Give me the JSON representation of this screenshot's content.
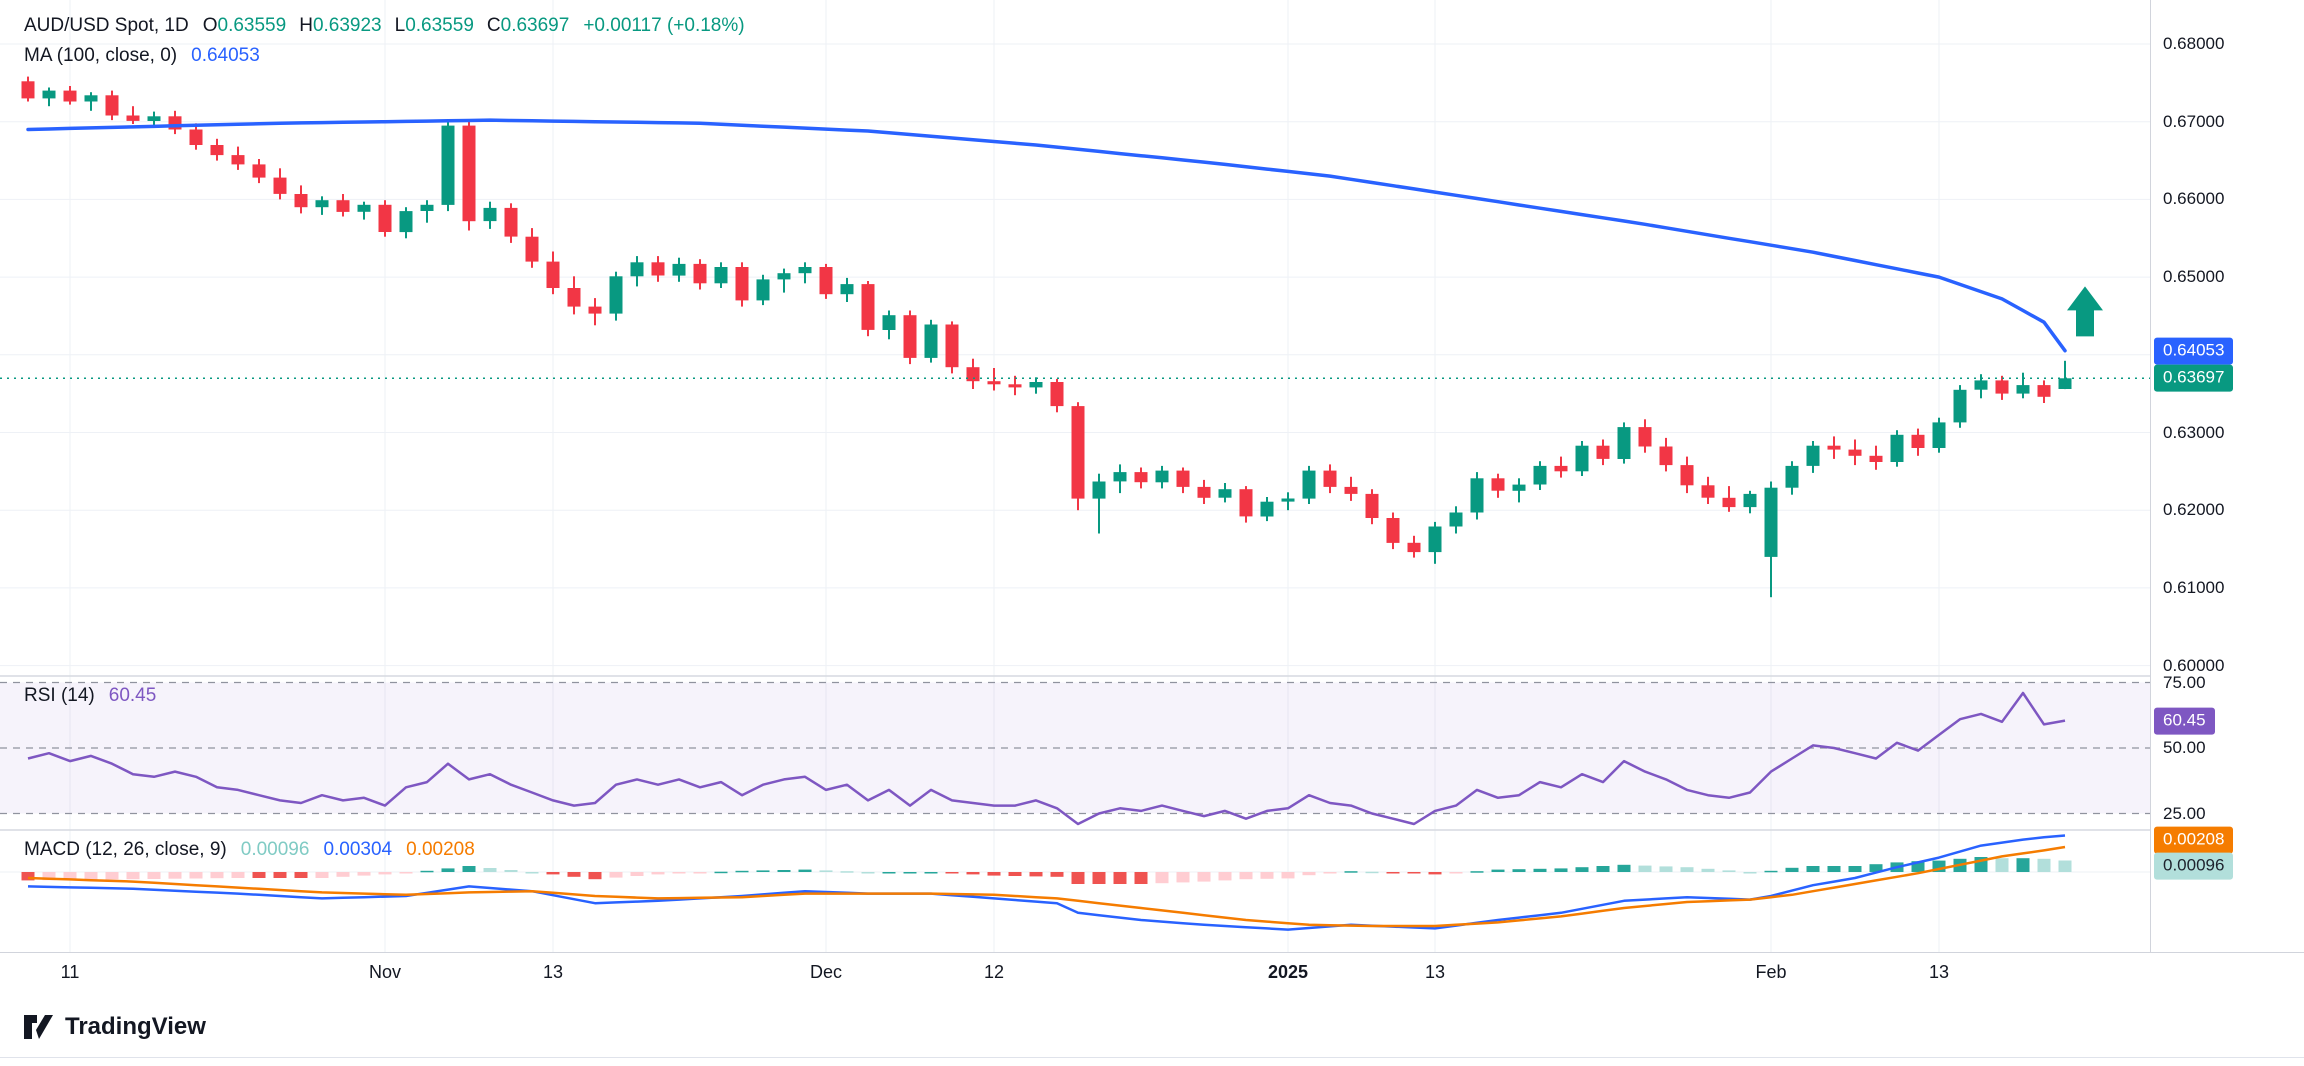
{
  "header": {
    "symbol": "AUD/USD Spot, 1D",
    "ohlc": [
      {
        "k": "O",
        "v": "0.63559"
      },
      {
        "k": "H",
        "v": "0.63923"
      },
      {
        "k": "L",
        "v": "0.63559"
      },
      {
        "k": "C",
        "v": "0.63697"
      }
    ],
    "change": "+0.00117 (+0.18%)",
    "ma_label": "MA (100, close, 0)",
    "ma_value": "0.64053"
  },
  "panes": {
    "rsi_label": "RSI (14)",
    "rsi_value": "60.45",
    "macd_label": "MACD (12, 26, close, 9)",
    "macd_hist": "0.00096",
    "macd_macd": "0.00304",
    "macd_signal": "0.00208"
  },
  "footer": {
    "logo_text": "TradingView"
  },
  "chart_data": {
    "type": "candlestick",
    "symbol": "AUD/USD Spot",
    "interval": "1D",
    "last_bar": {
      "open": 0.63559,
      "high": 0.63923,
      "low": 0.63559,
      "close": 0.63697,
      "change": "+0.00117 (+0.18%)"
    },
    "price_axis": {
      "min": 0.6,
      "max": 0.68,
      "labels": [
        [
          "0.68000",
          0.68
        ],
        [
          "0.67000",
          0.67
        ],
        [
          "0.66000",
          0.66
        ],
        [
          "0.65000",
          0.65
        ],
        [
          "0.63000",
          0.63
        ],
        [
          "0.62000",
          0.62
        ],
        [
          "0.61000",
          0.61
        ],
        [
          "0.60000",
          0.6
        ]
      ],
      "gridlines": [
        0.68,
        0.67,
        0.66,
        0.65,
        0.64,
        0.63,
        0.62,
        0.61,
        0.6
      ],
      "badges": [
        {
          "text": "0.64053",
          "price": 0.64053,
          "bg": "#2962ff",
          "fg": "#ffffff"
        },
        {
          "text": "0.63697",
          "price": 0.63697,
          "bg": "#089981",
          "fg": "#ffffff"
        }
      ]
    },
    "close_line": 0.63697,
    "arrow": {
      "price": 0.6452
    },
    "candles": [
      [
        0.6752,
        0.6758,
        0.6726,
        0.673
      ],
      [
        0.673,
        0.6744,
        0.672,
        0.674
      ],
      [
        0.674,
        0.6746,
        0.6722,
        0.6726
      ],
      [
        0.6726,
        0.6738,
        0.6714,
        0.6734
      ],
      [
        0.6734,
        0.674,
        0.6702,
        0.6708
      ],
      [
        0.6708,
        0.672,
        0.6697,
        0.6701
      ],
      [
        0.6701,
        0.6713,
        0.6692,
        0.6707
      ],
      [
        0.6707,
        0.6714,
        0.6684,
        0.669
      ],
      [
        0.669,
        0.6698,
        0.6664,
        0.667
      ],
      [
        0.667,
        0.6678,
        0.665,
        0.6657
      ],
      [
        0.6657,
        0.6668,
        0.6638,
        0.6645
      ],
      [
        0.6645,
        0.6652,
        0.6621,
        0.6628
      ],
      [
        0.6628,
        0.664,
        0.66,
        0.6607
      ],
      [
        0.6607,
        0.6618,
        0.6582,
        0.659
      ],
      [
        0.659,
        0.6604,
        0.658,
        0.6599
      ],
      [
        0.6599,
        0.6607,
        0.6578,
        0.6584
      ],
      [
        0.6584,
        0.6597,
        0.6574,
        0.6593
      ],
      [
        0.6593,
        0.6599,
        0.6552,
        0.6558
      ],
      [
        0.6558,
        0.659,
        0.655,
        0.6585
      ],
      [
        0.6585,
        0.6599,
        0.657,
        0.6593
      ],
      [
        0.6593,
        0.6702,
        0.6585,
        0.6695
      ],
      [
        0.6695,
        0.6701,
        0.656,
        0.6572
      ],
      [
        0.6572,
        0.6597,
        0.6562,
        0.6589
      ],
      [
        0.6589,
        0.6595,
        0.6544,
        0.6552
      ],
      [
        0.6552,
        0.6563,
        0.6512,
        0.652
      ],
      [
        0.652,
        0.6533,
        0.6478,
        0.6486
      ],
      [
        0.6486,
        0.6501,
        0.6452,
        0.6462
      ],
      [
        0.6462,
        0.6473,
        0.6438,
        0.6453
      ],
      [
        0.6453,
        0.6507,
        0.6444,
        0.6501
      ],
      [
        0.6501,
        0.6527,
        0.6488,
        0.6519
      ],
      [
        0.6519,
        0.6527,
        0.6494,
        0.6502
      ],
      [
        0.6502,
        0.6525,
        0.6494,
        0.6517
      ],
      [
        0.6517,
        0.6523,
        0.6484,
        0.6492
      ],
      [
        0.6492,
        0.6519,
        0.6486,
        0.6513
      ],
      [
        0.6513,
        0.6519,
        0.6462,
        0.647
      ],
      [
        0.647,
        0.6503,
        0.6464,
        0.6497
      ],
      [
        0.6497,
        0.6511,
        0.648,
        0.6505
      ],
      [
        0.6505,
        0.6519,
        0.6492,
        0.6513
      ],
      [
        0.6513,
        0.6517,
        0.6472,
        0.6478
      ],
      [
        0.6478,
        0.6499,
        0.6468,
        0.6491
      ],
      [
        0.6491,
        0.6495,
        0.6424,
        0.6432
      ],
      [
        0.6432,
        0.6457,
        0.642,
        0.6451
      ],
      [
        0.6451,
        0.6457,
        0.6388,
        0.6396
      ],
      [
        0.6396,
        0.6445,
        0.639,
        0.6439
      ],
      [
        0.6439,
        0.6443,
        0.6376,
        0.6384
      ],
      [
        0.6384,
        0.6395,
        0.6356,
        0.6366
      ],
      [
        0.6366,
        0.6383,
        0.6354,
        0.6362
      ],
      [
        0.6362,
        0.6373,
        0.6348,
        0.6358
      ],
      [
        0.6358,
        0.6371,
        0.635,
        0.6365
      ],
      [
        0.6365,
        0.6369,
        0.6326,
        0.6334
      ],
      [
        0.6334,
        0.6339,
        0.62,
        0.6215
      ],
      [
        0.6215,
        0.6247,
        0.617,
        0.6237
      ],
      [
        0.6237,
        0.6259,
        0.6222,
        0.6249
      ],
      [
        0.6249,
        0.6255,
        0.6228,
        0.6236
      ],
      [
        0.6236,
        0.6257,
        0.6228,
        0.6251
      ],
      [
        0.6251,
        0.6255,
        0.6222,
        0.623
      ],
      [
        0.623,
        0.6239,
        0.6208,
        0.6216
      ],
      [
        0.6216,
        0.6235,
        0.621,
        0.6227
      ],
      [
        0.6227,
        0.6231,
        0.6184,
        0.6192
      ],
      [
        0.6192,
        0.6217,
        0.6186,
        0.6211
      ],
      [
        0.6211,
        0.6223,
        0.62,
        0.6215
      ],
      [
        0.6215,
        0.6257,
        0.6208,
        0.6251
      ],
      [
        0.6251,
        0.6259,
        0.6222,
        0.623
      ],
      [
        0.623,
        0.6243,
        0.6212,
        0.6221
      ],
      [
        0.6221,
        0.6227,
        0.6182,
        0.619
      ],
      [
        0.619,
        0.6197,
        0.615,
        0.6158
      ],
      [
        0.6158,
        0.6167,
        0.6139,
        0.6146
      ],
      [
        0.6146,
        0.6185,
        0.6131,
        0.6179
      ],
      [
        0.6179,
        0.6205,
        0.617,
        0.6197
      ],
      [
        0.6197,
        0.6249,
        0.6188,
        0.6241
      ],
      [
        0.6241,
        0.6247,
        0.6216,
        0.6225
      ],
      [
        0.6225,
        0.6241,
        0.621,
        0.6233
      ],
      [
        0.6233,
        0.6263,
        0.6226,
        0.6257
      ],
      [
        0.6257,
        0.6269,
        0.6242,
        0.625
      ],
      [
        0.625,
        0.6289,
        0.6244,
        0.6283
      ],
      [
        0.6283,
        0.6291,
        0.6258,
        0.6266
      ],
      [
        0.6266,
        0.6313,
        0.626,
        0.6307
      ],
      [
        0.6307,
        0.6317,
        0.6274,
        0.6282
      ],
      [
        0.6282,
        0.6293,
        0.625,
        0.6258
      ],
      [
        0.6258,
        0.6269,
        0.6222,
        0.6232
      ],
      [
        0.6232,
        0.6243,
        0.6208,
        0.6216
      ],
      [
        0.6216,
        0.6231,
        0.6198,
        0.6204
      ],
      [
        0.6204,
        0.6225,
        0.6196,
        0.6221
      ],
      [
        0.614,
        0.6237,
        0.6088,
        0.6229
      ],
      [
        0.6229,
        0.6263,
        0.622,
        0.6257
      ],
      [
        0.6257,
        0.6289,
        0.6248,
        0.6283
      ],
      [
        0.6283,
        0.6295,
        0.6266,
        0.6278
      ],
      [
        0.6278,
        0.6291,
        0.6258,
        0.627
      ],
      [
        0.627,
        0.6283,
        0.6252,
        0.6262
      ],
      [
        0.6262,
        0.6303,
        0.6256,
        0.6297
      ],
      [
        0.6297,
        0.6305,
        0.627,
        0.628
      ],
      [
        0.628,
        0.6319,
        0.6274,
        0.6313
      ],
      [
        0.6313,
        0.6361,
        0.6306,
        0.6355
      ],
      [
        0.6355,
        0.6375,
        0.6344,
        0.6367
      ],
      [
        0.6367,
        0.6373,
        0.6342,
        0.635
      ],
      [
        0.635,
        0.6377,
        0.6344,
        0.6361
      ],
      [
        0.6361,
        0.6367,
        0.6338,
        0.6346
      ],
      [
        0.63559,
        0.63923,
        0.63559,
        0.63697
      ]
    ],
    "ma100": {
      "value": 0.64053,
      "anchors": [
        [
          0,
          0.669
        ],
        [
          12,
          0.6698
        ],
        [
          22,
          0.6702
        ],
        [
          32,
          0.6698
        ],
        [
          40,
          0.6688
        ],
        [
          48,
          0.667
        ],
        [
          56,
          0.6648
        ],
        [
          62,
          0.663
        ],
        [
          70,
          0.6597
        ],
        [
          77,
          0.6568
        ],
        [
          85,
          0.6532
        ],
        [
          91,
          0.65
        ],
        [
          94,
          0.6472
        ],
        [
          96,
          0.6442
        ],
        [
          97,
          0.64053
        ]
      ]
    },
    "rsi": {
      "period": 14,
      "value": 60.45,
      "levels": [
        [
          "75.00",
          75
        ],
        [
          "50.00",
          50
        ],
        [
          "25.00",
          25
        ]
      ],
      "values": [
        46,
        48,
        45,
        47,
        44,
        40,
        39,
        41,
        39,
        35,
        34,
        32,
        30,
        29,
        32,
        30,
        31,
        28,
        35,
        37,
        44,
        38,
        40,
        36,
        33,
        30,
        28,
        29,
        36,
        38,
        36,
        38,
        35,
        37,
        32,
        36,
        38,
        39,
        34,
        36,
        30,
        34,
        28,
        34,
        30,
        29,
        28,
        28,
        30,
        27,
        21,
        25,
        27,
        26,
        28,
        26,
        24,
        26,
        23,
        26,
        27,
        32,
        29,
        28,
        25,
        23,
        21,
        26,
        28,
        34,
        31,
        32,
        37,
        35,
        40,
        37,
        45,
        41,
        38,
        34,
        32,
        31,
        33,
        41,
        46,
        51,
        50,
        48,
        46,
        52,
        49,
        55,
        61,
        63,
        60,
        71,
        59,
        60.45
      ],
      "badge": {
        "text": "60.45",
        "value": 60.45,
        "bg": "#7e57c2",
        "fg": "#ffffff"
      }
    },
    "macd": {
      "params": "12, 26, close, 9",
      "hist": 0.00096,
      "macd_value": 0.00304,
      "signal_value": 0.00208,
      "macd_anchors": [
        [
          0,
          -0.0012
        ],
        [
          5,
          -0.0014
        ],
        [
          10,
          -0.0018
        ],
        [
          14,
          -0.0022
        ],
        [
          18,
          -0.002
        ],
        [
          21,
          -0.0012
        ],
        [
          24,
          -0.0016
        ],
        [
          27,
          -0.0026
        ],
        [
          30,
          -0.0024
        ],
        [
          34,
          -0.002
        ],
        [
          37,
          -0.0016
        ],
        [
          40,
          -0.0018
        ],
        [
          43,
          -0.0018
        ],
        [
          46,
          -0.0022
        ],
        [
          49,
          -0.0026
        ],
        [
          50,
          -0.0034
        ],
        [
          53,
          -0.004
        ],
        [
          56,
          -0.0044
        ],
        [
          60,
          -0.0048
        ],
        [
          63,
          -0.0044
        ],
        [
          67,
          -0.0047
        ],
        [
          70,
          -0.004
        ],
        [
          73,
          -0.0034
        ],
        [
          76,
          -0.0024
        ],
        [
          79,
          -0.0021
        ],
        [
          82,
          -0.0023
        ],
        [
          83,
          -0.002
        ],
        [
          85,
          -0.0011
        ],
        [
          87,
          -0.0005
        ],
        [
          89,
          0.0004
        ],
        [
          91,
          0.0012
        ],
        [
          93,
          0.0022
        ],
        [
          95,
          0.0027
        ],
        [
          96,
          0.0029
        ],
        [
          97,
          0.00304
        ]
      ],
      "signal_anchors": [
        [
          0,
          -0.0005
        ],
        [
          5,
          -0.0008
        ],
        [
          10,
          -0.0013
        ],
        [
          14,
          -0.0017
        ],
        [
          18,
          -0.0019
        ],
        [
          21,
          -0.0017
        ],
        [
          24,
          -0.0016
        ],
        [
          27,
          -0.002
        ],
        [
          30,
          -0.0022
        ],
        [
          34,
          -0.0021
        ],
        [
          37,
          -0.0018
        ],
        [
          40,
          -0.0018
        ],
        [
          43,
          -0.0018
        ],
        [
          46,
          -0.0019
        ],
        [
          49,
          -0.0022
        ],
        [
          52,
          -0.0028
        ],
        [
          55,
          -0.0034
        ],
        [
          58,
          -0.004
        ],
        [
          61,
          -0.0044
        ],
        [
          64,
          -0.0045
        ],
        [
          67,
          -0.0045
        ],
        [
          70,
          -0.0042
        ],
        [
          73,
          -0.0037
        ],
        [
          76,
          -0.003
        ],
        [
          79,
          -0.0025
        ],
        [
          82,
          -0.0023
        ],
        [
          84,
          -0.0019
        ],
        [
          86,
          -0.0013
        ],
        [
          88,
          -0.0007
        ],
        [
          90,
          -0.0001
        ],
        [
          92,
          0.0006
        ],
        [
          94,
          0.0013
        ],
        [
          96,
          0.0018
        ],
        [
          97,
          0.00208
        ]
      ],
      "badges": [
        {
          "text": "0.00208",
          "value": 0.00208,
          "bg": "#f57c00",
          "fg": "#ffffff"
        },
        {
          "text": "0.00096",
          "value": 0.00096,
          "bg": "#b2dfdb",
          "fg": "#1e222d"
        }
      ]
    },
    "time_axis": [
      {
        "label": "11",
        "i": 2,
        "bold": false
      },
      {
        "label": "Nov",
        "i": 17,
        "bold": false
      },
      {
        "label": "13",
        "i": 25,
        "bold": false
      },
      {
        "label": "Dec",
        "i": 38,
        "bold": false
      },
      {
        "label": "12",
        "i": 46,
        "bold": false
      },
      {
        "label": "2025",
        "i": 60,
        "bold": true
      },
      {
        "label": "13",
        "i": 67,
        "bold": false
      },
      {
        "label": "Feb",
        "i": 83,
        "bold": false
      },
      {
        "label": "13",
        "i": 91,
        "bold": false
      }
    ],
    "colors": {
      "up": "#089981",
      "down": "#f23645",
      "ma": "#2962ff",
      "rsi_line": "#7e57c2",
      "macd_line": "#2962ff",
      "signal_line": "#f57c00",
      "hist_grow": "#26a69a",
      "hist_shrink": "#b2dfdb",
      "hist_fall": "#ef5350",
      "hist_rise": "#ffcdd2",
      "close_line": "#089981",
      "arrow": "#089981",
      "grid": "#eef1f6",
      "separator": "#d6d9e0",
      "rsi_band": "#7e57c2"
    }
  }
}
